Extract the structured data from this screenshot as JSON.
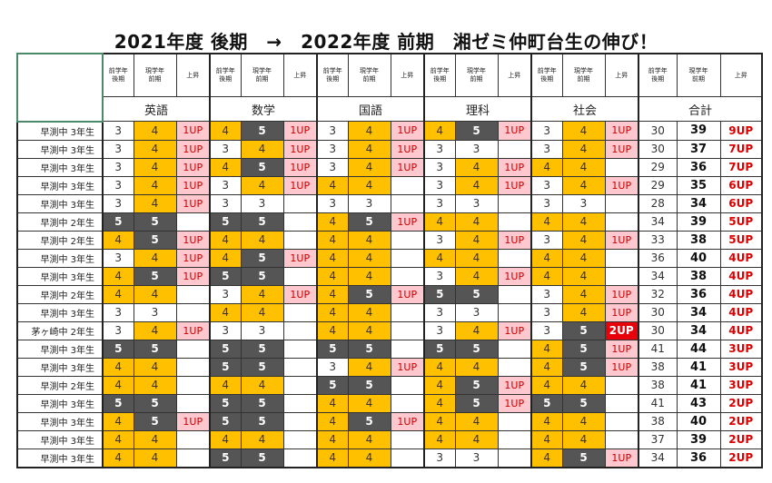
{
  "title": "2021年度 後期　→　2022年度 前期　湘ゼミ仲町台生の伸び！",
  "sub_headers": [
    "前学年\n後期",
    "現学年\n前期",
    "上昇"
  ],
  "subjects": [
    "英語",
    "数学",
    "国語",
    "理科",
    "社会",
    "合計"
  ],
  "colors": {
    "grade4": "#FFC000",
    "grade5": "#555555",
    "up1": "#FFC7CE",
    "up2": "#E8000B"
  },
  "rows": [
    {
      "label": "早渕中 3年生",
      "cells": [
        [
          "3",
          "4",
          "1UP"
        ],
        [
          "4",
          "5",
          "1UP"
        ],
        [
          "3",
          "4",
          "1UP"
        ],
        [
          "4",
          "5",
          "1UP"
        ],
        [
          "3",
          "4",
          "1UP"
        ],
        [
          "30",
          "39",
          "9UP"
        ]
      ]
    },
    {
      "label": "早渕中 3年生",
      "cells": [
        [
          "3",
          "4",
          "1UP"
        ],
        [
          "3",
          "4",
          "1UP"
        ],
        [
          "3",
          "4",
          "1UP"
        ],
        [
          "3",
          "3",
          ""
        ],
        [
          "3",
          "4",
          "1UP"
        ],
        [
          "30",
          "37",
          "7UP"
        ]
      ]
    },
    {
      "label": "早渕中 3年生",
      "cells": [
        [
          "3",
          "4",
          "1UP"
        ],
        [
          "4",
          "5",
          "1UP"
        ],
        [
          "3",
          "4",
          "1UP"
        ],
        [
          "3",
          "4",
          "1UP"
        ],
        [
          "4",
          "4",
          ""
        ],
        [
          "29",
          "36",
          "7UP"
        ]
      ]
    },
    {
      "label": "早渕中 3年生",
      "cells": [
        [
          "3",
          "4",
          "1UP"
        ],
        [
          "3",
          "4",
          "1UP"
        ],
        [
          "4",
          "4",
          ""
        ],
        [
          "3",
          "4",
          "1UP"
        ],
        [
          "3",
          "4",
          "1UP"
        ],
        [
          "29",
          "35",
          "6UP"
        ]
      ]
    },
    {
      "label": "早渕中 3年生",
      "cells": [
        [
          "3",
          "4",
          "1UP"
        ],
        [
          "3",
          "3",
          ""
        ],
        [
          "3",
          "3",
          ""
        ],
        [
          "3",
          "3",
          ""
        ],
        [
          "3",
          "3",
          ""
        ],
        [
          "28",
          "34",
          "6UP"
        ]
      ]
    },
    {
      "label": "早渕中 2年生",
      "cells": [
        [
          "5",
          "5",
          ""
        ],
        [
          "5",
          "5",
          ""
        ],
        [
          "4",
          "5",
          "1UP"
        ],
        [
          "4",
          "4",
          ""
        ],
        [
          "4",
          "4",
          ""
        ],
        [
          "34",
          "39",
          "5UP"
        ]
      ]
    },
    {
      "label": "早渕中 2年生",
      "cells": [
        [
          "4",
          "5",
          "1UP"
        ],
        [
          "4",
          "4",
          ""
        ],
        [
          "4",
          "4",
          ""
        ],
        [
          "3",
          "4",
          "1UP"
        ],
        [
          "3",
          "4",
          "1UP"
        ],
        [
          "33",
          "38",
          "5UP"
        ]
      ]
    },
    {
      "label": "早渕中 3年生",
      "cells": [
        [
          "3",
          "4",
          "1UP"
        ],
        [
          "4",
          "5",
          "1UP"
        ],
        [
          "4",
          "4",
          ""
        ],
        [
          "4",
          "4",
          ""
        ],
        [
          "4",
          "4",
          ""
        ],
        [
          "36",
          "40",
          "4UP"
        ]
      ]
    },
    {
      "label": "早渕中 3年生",
      "cells": [
        [
          "4",
          "5",
          "1UP"
        ],
        [
          "5",
          "5",
          ""
        ],
        [
          "4",
          "4",
          ""
        ],
        [
          "3",
          "4",
          "1UP"
        ],
        [
          "4",
          "4",
          ""
        ],
        [
          "34",
          "38",
          "4UP"
        ]
      ]
    },
    {
      "label": "早渕中 2年生",
      "cells": [
        [
          "4",
          "4",
          ""
        ],
        [
          "3",
          "4",
          "1UP"
        ],
        [
          "4",
          "5",
          "1UP"
        ],
        [
          "5",
          "5",
          ""
        ],
        [
          "3",
          "4",
          "1UP"
        ],
        [
          "32",
          "36",
          "4UP"
        ]
      ]
    },
    {
      "label": "早渕中 3年生",
      "cells": [
        [
          "3",
          "3",
          ""
        ],
        [
          "4",
          "4",
          ""
        ],
        [
          "4",
          "4",
          ""
        ],
        [
          "3",
          "3",
          ""
        ],
        [
          "3",
          "4",
          "1UP"
        ],
        [
          "30",
          "34",
          "4UP"
        ]
      ]
    },
    {
      "label": "茅ヶ崎中 2年生",
      "cells": [
        [
          "3",
          "4",
          "1UP"
        ],
        [
          "3",
          "3",
          ""
        ],
        [
          "4",
          "4",
          ""
        ],
        [
          "3",
          "4",
          "1UP"
        ],
        [
          "3",
          "5",
          "2UP"
        ],
        [
          "30",
          "34",
          "4UP"
        ]
      ]
    },
    {
      "label": "早渕中 3年生",
      "cells": [
        [
          "5",
          "5",
          ""
        ],
        [
          "5",
          "5",
          ""
        ],
        [
          "5",
          "5",
          ""
        ],
        [
          "5",
          "5",
          ""
        ],
        [
          "4",
          "5",
          "1UP"
        ],
        [
          "41",
          "44",
          "3UP"
        ]
      ]
    },
    {
      "label": "早渕中 3年生",
      "cells": [
        [
          "4",
          "4",
          ""
        ],
        [
          "5",
          "5",
          ""
        ],
        [
          "3",
          "4",
          "1UP"
        ],
        [
          "4",
          "4",
          ""
        ],
        [
          "4",
          "5",
          "1UP"
        ],
        [
          "38",
          "41",
          "3UP"
        ]
      ]
    },
    {
      "label": "早渕中 2年生",
      "cells": [
        [
          "4",
          "4",
          ""
        ],
        [
          "4",
          "4",
          ""
        ],
        [
          "5",
          "5",
          ""
        ],
        [
          "4",
          "5",
          "1UP"
        ],
        [
          "4",
          "4",
          ""
        ],
        [
          "38",
          "41",
          "3UP"
        ]
      ]
    },
    {
      "label": "早渕中 3年生",
      "cells": [
        [
          "5",
          "5",
          ""
        ],
        [
          "5",
          "5",
          ""
        ],
        [
          "4",
          "4",
          ""
        ],
        [
          "4",
          "5",
          "1UP"
        ],
        [
          "5",
          "5",
          ""
        ],
        [
          "41",
          "43",
          "2UP"
        ]
      ]
    },
    {
      "label": "早渕中 3年生",
      "cells": [
        [
          "4",
          "5",
          "1UP"
        ],
        [
          "5",
          "5",
          ""
        ],
        [
          "4",
          "5",
          "1UP"
        ],
        [
          "4",
          "4",
          ""
        ],
        [
          "4",
          "4",
          ""
        ],
        [
          "38",
          "40",
          "2UP"
        ]
      ]
    },
    {
      "label": "早渕中 3年生",
      "cells": [
        [
          "4",
          "4",
          ""
        ],
        [
          "4",
          "4",
          ""
        ],
        [
          "4",
          "4",
          ""
        ],
        [
          "4",
          "4",
          ""
        ],
        [
          "4",
          "4",
          ""
        ],
        [
          "37",
          "39",
          "2UP"
        ]
      ]
    },
    {
      "label": "早渕中 3年生",
      "cells": [
        [
          "4",
          "4",
          ""
        ],
        [
          "5",
          "5",
          ""
        ],
        [
          "4",
          "4",
          ""
        ],
        [
          "3",
          "3",
          ""
        ],
        [
          "4",
          "5",
          "1UP"
        ],
        [
          "34",
          "36",
          "2UP"
        ]
      ]
    }
  ]
}
